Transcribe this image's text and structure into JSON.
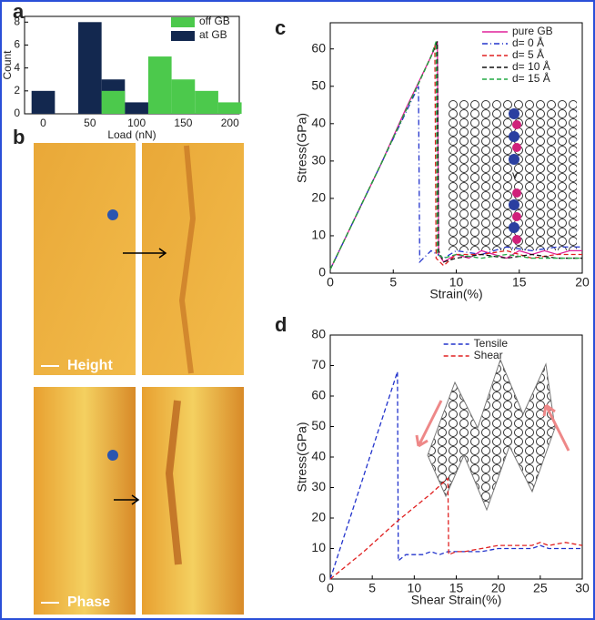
{
  "panel_labels": [
    "a",
    "b",
    "c",
    "d"
  ],
  "images": {
    "height_label": "Height",
    "phase_label": "Phase"
  },
  "inset_label": "v",
  "chart_data": [
    {
      "type": "histogram",
      "xlabel": "Load (nN)",
      "ylabel": "Count",
      "bins": [
        -12.5,
        12.5,
        37.5,
        62.5,
        87.5,
        112.5,
        137.5,
        162.5,
        187.5,
        212.5
      ],
      "series": [
        {
          "name": "off GB",
          "color": "#4cc94c",
          "values": [
            0,
            0,
            0,
            2,
            0,
            5,
            3,
            2,
            1
          ]
        },
        {
          "name": "at GB",
          "color": "#13284f",
          "values": [
            2,
            0,
            8,
            3,
            1,
            0,
            0,
            0,
            0
          ]
        }
      ],
      "xlim": [
        -20,
        210
      ],
      "xticks": [
        0,
        50,
        100,
        150,
        200
      ],
      "ylim": [
        0,
        8.5
      ],
      "yticks": [
        0,
        2,
        4,
        6,
        8
      ],
      "legend": "top-right"
    },
    {
      "type": "line",
      "xlabel": "Strain(%)",
      "ylabel": "Stress(GPa)",
      "xlim": [
        0,
        20
      ],
      "xticks": [
        0,
        5,
        10,
        15,
        20
      ],
      "ylim": [
        0,
        67
      ],
      "yticks": [
        0,
        10,
        20,
        30,
        40,
        50,
        60
      ],
      "legend": "top-right",
      "series": [
        {
          "name": "pure GB",
          "color": "#e0209a",
          "dash": "solid",
          "x": [
            0,
            2,
            4,
            6,
            8,
            8.5,
            8.6,
            9,
            10,
            11,
            12,
            13,
            14,
            15,
            16,
            17,
            18,
            19,
            20
          ],
          "values": [
            1,
            15,
            29,
            44,
            58,
            62,
            5,
            3,
            5,
            4,
            6,
            5,
            4,
            6,
            5,
            6,
            5,
            6,
            6
          ]
        },
        {
          "name": "d= 0 Å",
          "color": "#2233cc",
          "dash": "dashdot",
          "x": [
            0,
            2,
            4,
            6,
            7,
            7.1,
            8,
            9,
            10,
            12,
            14,
            16,
            18,
            20
          ],
          "values": [
            1,
            15,
            29,
            43,
            50,
            3,
            6,
            4,
            6,
            5,
            7,
            6,
            7,
            7
          ]
        },
        {
          "name": "d= 5 Å",
          "color": "#e02020",
          "dash": "dashed",
          "x": [
            0,
            4,
            8,
            8.3,
            8.4,
            9,
            10,
            12,
            14,
            16,
            18,
            20
          ],
          "values": [
            1,
            29,
            58,
            61,
            4,
            2,
            5,
            5,
            6,
            4,
            5,
            5
          ]
        },
        {
          "name": "d= 10 Å",
          "color": "#111111",
          "dash": "dashed",
          "x": [
            0,
            4,
            8,
            8.5,
            8.6,
            9,
            10,
            12,
            14,
            16,
            18,
            20
          ],
          "values": [
            1,
            29,
            58,
            62,
            6,
            3,
            4,
            5,
            4,
            5,
            4,
            4
          ]
        },
        {
          "name": "d= 15 Å",
          "color": "#22aa44",
          "dash": "dashed",
          "x": [
            0,
            4,
            8,
            8.4,
            8.5,
            9,
            10,
            12,
            14,
            16,
            18,
            20
          ],
          "values": [
            1,
            29,
            58,
            62,
            5,
            4,
            5,
            4,
            5,
            4,
            4,
            4
          ]
        }
      ]
    },
    {
      "type": "line",
      "xlabel": "Shear Strain(%)",
      "ylabel": "Stress(GPa)",
      "xlim": [
        0,
        30
      ],
      "xticks": [
        0,
        5,
        10,
        15,
        20,
        25,
        30
      ],
      "ylim": [
        0,
        80
      ],
      "yticks": [
        0,
        10,
        20,
        30,
        40,
        50,
        60,
        70,
        80
      ],
      "legend": "top-center",
      "series": [
        {
          "name": "Tensile",
          "color": "#2233cc",
          "dash": "dashed",
          "x": [
            0,
            2,
            4,
            6,
            8,
            8.1,
            9,
            10,
            11,
            12,
            13,
            14,
            16,
            18,
            20,
            22,
            24,
            25,
            26,
            28,
            30
          ],
          "values": [
            0,
            17,
            34,
            51,
            68,
            6,
            8,
            8,
            8,
            9,
            8,
            9,
            9,
            9,
            10,
            10,
            10,
            11,
            10,
            10,
            10
          ]
        },
        {
          "name": "Shear",
          "color": "#e02020",
          "dash": "dashed",
          "x": [
            0,
            4,
            8,
            12,
            14,
            14.1,
            15,
            16,
            18,
            20,
            22,
            24,
            25,
            26,
            28,
            30
          ],
          "values": [
            0,
            9,
            19,
            28,
            33,
            8,
            9,
            9,
            10,
            11,
            11,
            11,
            12,
            11,
            12,
            11
          ]
        }
      ]
    }
  ]
}
